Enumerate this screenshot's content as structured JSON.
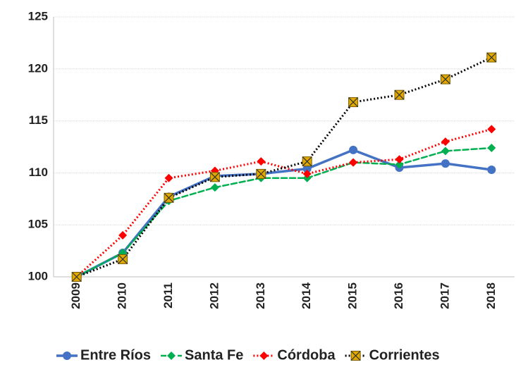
{
  "chart_data": {
    "type": "line",
    "categories": [
      "2009",
      "2010",
      "2011",
      "2012",
      "2013",
      "2014",
      "2015",
      "2016",
      "2017",
      "2018"
    ],
    "series": [
      {
        "name": "Entre Ríos",
        "color": "#4472c4",
        "marker_color": "#4472c4",
        "marker": "circle",
        "dash": "solid",
        "values": [
          100,
          102.3,
          107.7,
          109.7,
          109.9,
          110.4,
          112.2,
          110.5,
          110.9,
          110.3
        ]
      },
      {
        "name": "Santa Fe",
        "color": "#00b050",
        "marker_color": "#00b050",
        "marker": "diamond",
        "dash": "dashed",
        "values": [
          100,
          102.3,
          107.3,
          108.6,
          109.5,
          109.5,
          111.0,
          110.8,
          112.1,
          112.4
        ]
      },
      {
        "name": "Córdoba",
        "color": "#ff0000",
        "marker_color": "#ff0000",
        "marker": "diamond",
        "dash": "dotted",
        "values": [
          100,
          104.0,
          109.5,
          110.2,
          111.1,
          109.9,
          111.0,
          111.3,
          113.0,
          114.2
        ]
      },
      {
        "name": "Corrientes",
        "color": "#000000",
        "marker_color": "#e0a800",
        "marker": "square-x",
        "dash": "dotted",
        "values": [
          100,
          101.7,
          107.6,
          109.6,
          109.9,
          111.1,
          116.8,
          117.5,
          119.0,
          121.1
        ]
      }
    ],
    "ylim": [
      100,
      125
    ],
    "yticks": [
      100,
      105,
      110,
      115,
      120,
      125
    ],
    "grid": true,
    "legend": "bottom"
  }
}
